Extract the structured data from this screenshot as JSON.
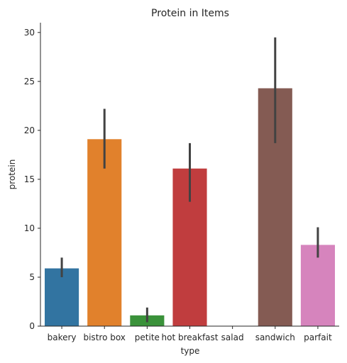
{
  "chart_data": {
    "type": "bar",
    "title": "Protein in Items",
    "xlabel": "type",
    "ylabel": "protein",
    "ylim": [
      0,
      31
    ],
    "yticks": [
      0,
      5,
      10,
      15,
      20,
      25,
      30
    ],
    "categories": [
      "bakery",
      "bistro box",
      "petite",
      "hot breakfast",
      "salad",
      "sandwich",
      "parfait"
    ],
    "values": [
      5.9,
      19.1,
      1.1,
      16.1,
      0,
      24.3,
      8.3
    ],
    "error_low": [
      5.0,
      16.1,
      0.4,
      12.7,
      0,
      18.7,
      7.0
    ],
    "error_high": [
      7.0,
      22.2,
      1.9,
      18.7,
      0,
      29.5,
      10.1
    ],
    "colors": [
      "#3274a1",
      "#e1812c",
      "#3a923a",
      "#c03d3e",
      "#9372b2",
      "#845b53",
      "#d684bd"
    ],
    "error_color": "#424242",
    "grid": false,
    "legend": "none"
  }
}
